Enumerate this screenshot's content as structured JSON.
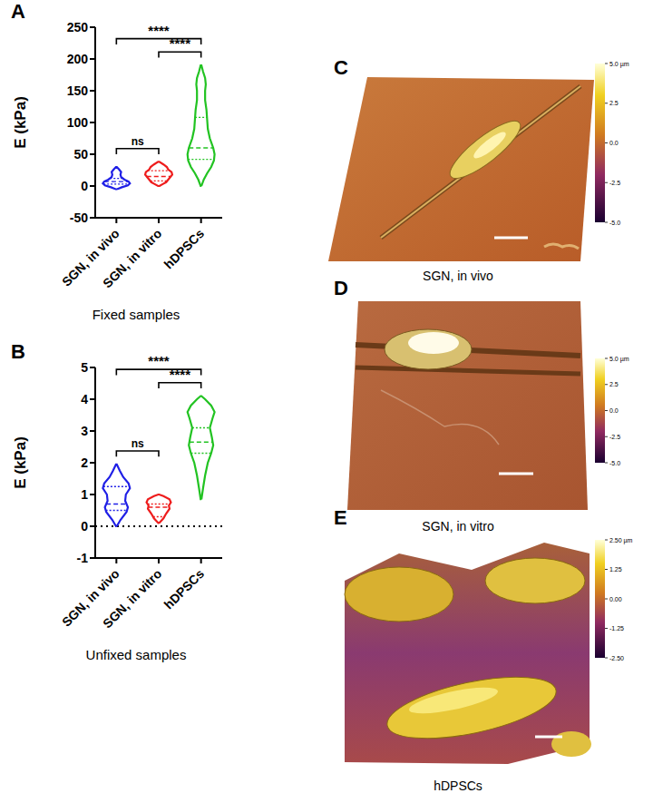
{
  "chart_data": [
    {
      "panel": "A",
      "type": "violin",
      "caption": "Fixed samples",
      "y_label": "E (kPa)",
      "categories": [
        "SGN, in vivo",
        "SGN, in vitro",
        "hDPSCs"
      ],
      "ylim": [
        -50,
        250
      ],
      "yticks": [
        -50,
        0,
        50,
        100,
        150,
        200,
        250
      ],
      "series": [
        {
          "color": "#1f1fe6",
          "q1": 3,
          "median": 7,
          "q3": 12,
          "density": [
            [
              -5,
              0.05
            ],
            [
              -2,
              0.4
            ],
            [
              1,
              0.85
            ],
            [
              4,
              1
            ],
            [
              7,
              0.9
            ],
            [
              10,
              0.6
            ],
            [
              14,
              0.35
            ],
            [
              18,
              0.3
            ],
            [
              22,
              0.35
            ],
            [
              26,
              0.2
            ],
            [
              30,
              0.03
            ]
          ]
        },
        {
          "color": "#ee1c1c",
          "q1": 8,
          "median": 15,
          "q3": 24,
          "density": [
            [
              0,
              0.05
            ],
            [
              3,
              0.3
            ],
            [
              6,
              0.55
            ],
            [
              10,
              0.7
            ],
            [
              14,
              0.85
            ],
            [
              18,
              1
            ],
            [
              22,
              0.95
            ],
            [
              26,
              0.7
            ],
            [
              30,
              0.6
            ],
            [
              34,
              0.35
            ],
            [
              38,
              0.05
            ]
          ]
        },
        {
          "color": "#22c322",
          "q1": 42,
          "median": 60,
          "q3": 108,
          "density": [
            [
              0,
              0.03
            ],
            [
              10,
              0.2
            ],
            [
              20,
              0.45
            ],
            [
              30,
              0.75
            ],
            [
              40,
              0.95
            ],
            [
              50,
              1
            ],
            [
              60,
              0.9
            ],
            [
              75,
              0.65
            ],
            [
              90,
              0.5
            ],
            [
              105,
              0.45
            ],
            [
              120,
              0.4
            ],
            [
              135,
              0.3
            ],
            [
              150,
              0.3
            ],
            [
              160,
              0.35
            ],
            [
              170,
              0.3
            ],
            [
              180,
              0.15
            ],
            [
              190,
              0.03
            ]
          ]
        }
      ],
      "comparisons": [
        {
          "from": "SGN, in vivo",
          "to": "SGN, in vitro",
          "label": "ns"
        },
        {
          "from": "SGN, in vitro",
          "to": "hDPSCs",
          "label": "****"
        },
        {
          "from": "SGN, in vivo",
          "to": "hDPSCs",
          "label": "****"
        }
      ]
    },
    {
      "panel": "B",
      "type": "violin",
      "caption": "Unfixed samples",
      "y_label": "E (kPa)",
      "categories": [
        "SGN, in vivo",
        "SGN, in vitro",
        "hDPSCs"
      ],
      "ylim": [
        -1,
        5
      ],
      "yticks": [
        -1,
        0,
        1,
        2,
        3,
        4,
        5
      ],
      "reference_lines": [
        0
      ],
      "series": [
        {
          "color": "#1f1fe6",
          "q1": 0.5,
          "median": 0.7,
          "q3": 1.25,
          "density": [
            [
              0,
              0.03
            ],
            [
              0.2,
              0.3
            ],
            [
              0.45,
              0.75
            ],
            [
              0.6,
              0.85
            ],
            [
              0.8,
              0.65
            ],
            [
              1.0,
              0.7
            ],
            [
              1.2,
              1
            ],
            [
              1.35,
              0.9
            ],
            [
              1.55,
              0.5
            ],
            [
              1.75,
              0.25
            ],
            [
              1.95,
              0.03
            ]
          ]
        },
        {
          "color": "#ee1c1c",
          "q1": 0.3,
          "median": 0.6,
          "q3": 0.7,
          "density": [
            [
              0.1,
              0.03
            ],
            [
              0.25,
              0.35
            ],
            [
              0.4,
              0.55
            ],
            [
              0.55,
              0.8
            ],
            [
              0.65,
              0.75
            ],
            [
              0.75,
              0.9
            ],
            [
              0.85,
              0.8
            ],
            [
              0.95,
              0.35
            ],
            [
              1.0,
              0.03
            ]
          ]
        },
        {
          "color": "#22c322",
          "q1": 2.3,
          "median": 2.65,
          "q3": 3.1,
          "density": [
            [
              0.85,
              0.03
            ],
            [
              1.2,
              0.15
            ],
            [
              1.6,
              0.3
            ],
            [
              2.0,
              0.5
            ],
            [
              2.3,
              0.75
            ],
            [
              2.55,
              0.9
            ],
            [
              2.8,
              0.8
            ],
            [
              3.1,
              0.65
            ],
            [
              3.4,
              0.85
            ],
            [
              3.6,
              1
            ],
            [
              3.8,
              0.75
            ],
            [
              4.0,
              0.3
            ],
            [
              4.1,
              0.03
            ]
          ]
        }
      ],
      "comparisons": [
        {
          "from": "SGN, in vivo",
          "to": "SGN, in vitro",
          "label": "ns"
        },
        {
          "from": "SGN, in vitro",
          "to": "hDPSCs",
          "label": "****"
        },
        {
          "from": "SGN, in vivo",
          "to": "hDPSCs",
          "label": "****"
        }
      ]
    }
  ],
  "images": [
    {
      "panel": "C",
      "caption": "SGN, in vivo",
      "colorbar": {
        "range": [
          -5,
          5
        ],
        "ticks": [
          {
            "value": 5,
            "label": "5.0 µm"
          },
          {
            "value": 2.5,
            "label": "2.5"
          },
          {
            "value": 0,
            "label": "0.0"
          },
          {
            "value": -2.5,
            "label": "-2.5"
          },
          {
            "value": -5,
            "label": "-5.0"
          }
        ]
      }
    },
    {
      "panel": "D",
      "caption": "SGN, in vitro",
      "colorbar": {
        "range": [
          -5,
          5
        ],
        "ticks": [
          {
            "value": 5,
            "label": "5.0 µm"
          },
          {
            "value": 2.5,
            "label": "2.5"
          },
          {
            "value": 0,
            "label": "0.0"
          },
          {
            "value": -2.5,
            "label": "-2.5"
          },
          {
            "value": -5,
            "label": "-5.0"
          }
        ]
      }
    },
    {
      "panel": "E",
      "caption": "hDPSCs",
      "colorbar": {
        "range": [
          -2.5,
          2.5
        ],
        "ticks": [
          {
            "value": 2.5,
            "label": "2.50 µm"
          },
          {
            "value": 1.25,
            "label": "1.25"
          },
          {
            "value": 0,
            "label": "0.00"
          },
          {
            "value": -1.25,
            "label": "-1.25"
          },
          {
            "value": -2.5,
            "label": "-2.50"
          }
        ]
      }
    }
  ]
}
